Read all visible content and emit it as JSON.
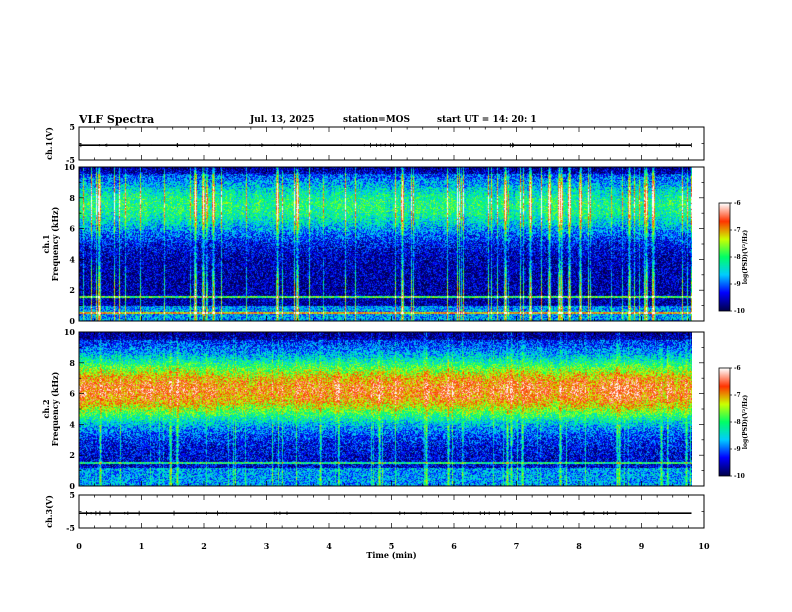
{
  "header": {
    "title": "VLF Spectra",
    "date": "Jul. 13, 2025",
    "station": "station=MOS",
    "start": "start UT =  14: 20: 1"
  },
  "chart_data": [
    {
      "type": "line",
      "id": "ch1",
      "ylabel": "ch.1(V)",
      "ylim": [
        -5,
        5
      ],
      "yticks": [
        -5,
        5
      ],
      "xlim": [
        0,
        10
      ],
      "series": [
        {
          "x": [
            0,
            9.8
          ],
          "y": [
            -0.5,
            -0.5
          ]
        }
      ]
    },
    {
      "type": "heatmap",
      "id": "spec1",
      "ylabel": "ch.1 Frequency (kHz)",
      "ylim": [
        0,
        10
      ],
      "yticks": [
        0,
        2,
        4,
        6,
        8,
        10
      ],
      "xlim": [
        0,
        10
      ],
      "data_xrange": [
        0,
        9.8
      ],
      "colorbar": {
        "label": "log(PSD)(V²/Hz)",
        "range": [
          -10,
          -6
        ],
        "ticks": [
          -10,
          -9,
          -8,
          -7,
          -6
        ]
      },
      "band_kHz": [
        6,
        9
      ]
    },
    {
      "type": "heatmap",
      "id": "spec2",
      "ylabel": "ch.2 Frequency (kHz)",
      "ylim": [
        0,
        10
      ],
      "yticks": [
        0,
        2,
        4,
        6,
        8,
        10
      ],
      "xlim": [
        0,
        10
      ],
      "data_xrange": [
        0,
        9.8
      ],
      "colorbar": {
        "label": "log(PSD)(V²/Hz)",
        "range": [
          -10,
          -6
        ],
        "ticks": [
          -10,
          -9,
          -8,
          -7,
          -6
        ]
      },
      "band_kHz": [
        4.5,
        8
      ]
    },
    {
      "type": "line",
      "id": "ch3",
      "ylabel": "ch.3(V)",
      "ylim": [
        -5,
        5
      ],
      "yticks": [
        -5,
        5
      ],
      "xlim": [
        0,
        10
      ],
      "series": [
        {
          "x": [
            0,
            9.8
          ],
          "y": [
            -0.5,
            -0.5
          ]
        }
      ]
    }
  ],
  "xaxis": {
    "label": "Time (min)",
    "ticks": [
      0,
      1,
      2,
      3,
      4,
      5,
      6,
      7,
      8,
      9,
      10
    ]
  },
  "colors": {
    "cmap": [
      "#00004c",
      "#0000ff",
      "#00ccff",
      "#00ff66",
      "#ccff00",
      "#ff3300",
      "#ffffff"
    ]
  }
}
